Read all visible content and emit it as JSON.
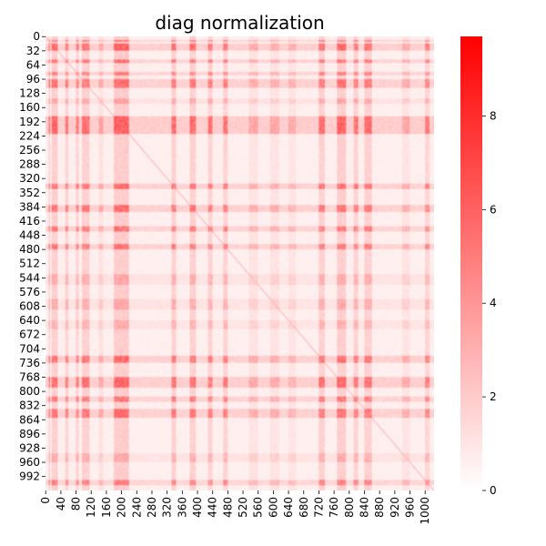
{
  "chart_data": {
    "type": "heatmap",
    "title": "diag normalization",
    "xlabel": "",
    "ylabel": "",
    "matrix_size": 1024,
    "x_tick_labels": [
      "0",
      "40",
      "80",
      "120",
      "160",
      "200",
      "240",
      "280",
      "320",
      "360",
      "400",
      "440",
      "480",
      "520",
      "560",
      "600",
      "640",
      "680",
      "720",
      "760",
      "800",
      "840",
      "880",
      "920",
      "960",
      "1000"
    ],
    "y_tick_labels": [
      "0",
      "32",
      "64",
      "96",
      "128",
      "160",
      "192",
      "224",
      "256",
      "288",
      "320",
      "352",
      "384",
      "416",
      "448",
      "480",
      "512",
      "544",
      "576",
      "608",
      "640",
      "672",
      "704",
      "736",
      "768",
      "800",
      "832",
      "864",
      "896",
      "928",
      "960",
      "992"
    ],
    "colorbar": {
      "min": 0,
      "max": 9.7,
      "ticks": [
        "0",
        "2",
        "4",
        "6",
        "8"
      ],
      "color_low": "#ffffff",
      "color_high": "#ff0000"
    },
    "high_value_bands": [
      {
        "start": 5,
        "end": 12,
        "value": 4.5
      },
      {
        "start": 16,
        "end": 30,
        "value": 5.5
      },
      {
        "start": 52,
        "end": 60,
        "value": 4.5
      },
      {
        "start": 80,
        "end": 88,
        "value": 4.0
      },
      {
        "start": 96,
        "end": 114,
        "value": 5.0
      },
      {
        "start": 180,
        "end": 220,
        "value": 6.0
      },
      {
        "start": 330,
        "end": 344,
        "value": 5.0
      },
      {
        "start": 378,
        "end": 395,
        "value": 5.0
      },
      {
        "start": 425,
        "end": 440,
        "value": 4.5
      },
      {
        "start": 465,
        "end": 478,
        "value": 4.5
      },
      {
        "start": 718,
        "end": 735,
        "value": 5.0
      },
      {
        "start": 765,
        "end": 790,
        "value": 5.5
      },
      {
        "start": 810,
        "end": 822,
        "value": 4.5
      },
      {
        "start": 840,
        "end": 860,
        "value": 5.0
      },
      {
        "start": 1000,
        "end": 1012,
        "value": 4.0
      }
    ],
    "medium_value_bands": [
      {
        "start": 140,
        "end": 150,
        "value": 2.0
      },
      {
        "start": 535,
        "end": 560,
        "value": 1.8
      },
      {
        "start": 590,
        "end": 615,
        "value": 1.8
      },
      {
        "start": 640,
        "end": 660,
        "value": 1.6
      },
      {
        "start": 940,
        "end": 960,
        "value": 1.8
      }
    ],
    "background_value": 0.6
  }
}
